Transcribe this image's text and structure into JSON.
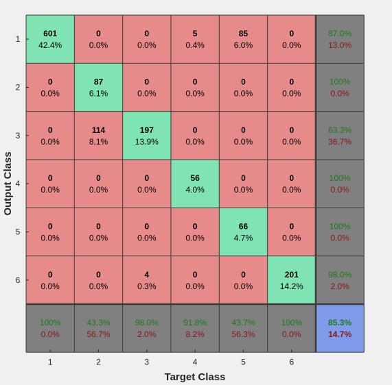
{
  "chart_data": {
    "type": "heatmap",
    "title": "",
    "xlabel": "Target Class",
    "ylabel": "Output Class",
    "x_ticks": [
      "1",
      "2",
      "3",
      "4",
      "5",
      "6"
    ],
    "y_ticks": [
      "1",
      "2",
      "3",
      "4",
      "5",
      "6"
    ],
    "rows": [
      {
        "cells": [
          {
            "count": "601",
            "pct": "42.4%"
          },
          {
            "count": "0",
            "pct": "0.0%"
          },
          {
            "count": "0",
            "pct": "0.0%"
          },
          {
            "count": "5",
            "pct": "0.4%"
          },
          {
            "count": "85",
            "pct": "6.0%"
          },
          {
            "count": "0",
            "pct": "0.0%"
          }
        ],
        "summary": {
          "good": "87.0%",
          "bad": "13.0%"
        }
      },
      {
        "cells": [
          {
            "count": "0",
            "pct": "0.0%"
          },
          {
            "count": "87",
            "pct": "6.1%"
          },
          {
            "count": "0",
            "pct": "0.0%"
          },
          {
            "count": "0",
            "pct": "0.0%"
          },
          {
            "count": "0",
            "pct": "0.0%"
          },
          {
            "count": "0",
            "pct": "0.0%"
          }
        ],
        "summary": {
          "good": "100%",
          "bad": "0.0%"
        }
      },
      {
        "cells": [
          {
            "count": "0",
            "pct": "0.0%"
          },
          {
            "count": "114",
            "pct": "8.1%"
          },
          {
            "count": "197",
            "pct": "13.9%"
          },
          {
            "count": "0",
            "pct": "0.0%"
          },
          {
            "count": "0",
            "pct": "0.0%"
          },
          {
            "count": "0",
            "pct": "0.0%"
          }
        ],
        "summary": {
          "good": "63.3%",
          "bad": "36.7%"
        }
      },
      {
        "cells": [
          {
            "count": "0",
            "pct": "0.0%"
          },
          {
            "count": "0",
            "pct": "0.0%"
          },
          {
            "count": "0",
            "pct": "0.0%"
          },
          {
            "count": "56",
            "pct": "4.0%"
          },
          {
            "count": "0",
            "pct": "0.0%"
          },
          {
            "count": "0",
            "pct": "0.0%"
          }
        ],
        "summary": {
          "good": "100%",
          "bad": "0.0%"
        }
      },
      {
        "cells": [
          {
            "count": "0",
            "pct": "0.0%"
          },
          {
            "count": "0",
            "pct": "0.0%"
          },
          {
            "count": "0",
            "pct": "0.0%"
          },
          {
            "count": "0",
            "pct": "0.0%"
          },
          {
            "count": "66",
            "pct": "4.7%"
          },
          {
            "count": "0",
            "pct": "0.0%"
          }
        ],
        "summary": {
          "good": "100%",
          "bad": "0.0%"
        }
      },
      {
        "cells": [
          {
            "count": "0",
            "pct": "0.0%"
          },
          {
            "count": "0",
            "pct": "0.0%"
          },
          {
            "count": "4",
            "pct": "0.3%"
          },
          {
            "count": "0",
            "pct": "0.0%"
          },
          {
            "count": "0",
            "pct": "0.0%"
          },
          {
            "count": "201",
            "pct": "14.2%"
          }
        ],
        "summary": {
          "good": "98.0%",
          "bad": "2.0%"
        }
      }
    ],
    "column_summary": [
      {
        "good": "100%",
        "bad": "0.0%"
      },
      {
        "good": "43.3%",
        "bad": "56.7%"
      },
      {
        "good": "98.0%",
        "bad": "2.0%"
      },
      {
        "good": "91.8%",
        "bad": "8.2%"
      },
      {
        "good": "43.7%",
        "bad": "56.3%"
      },
      {
        "good": "100%",
        "bad": "0.0%"
      }
    ],
    "overall": {
      "good": "85.3%",
      "bad": "14.7%"
    },
    "colors": {
      "correct": "#7fe3b4",
      "incorrect": "#e68a8a",
      "summary": "#808080",
      "overall": "#7f9bea",
      "good_text": "#1a7a1a",
      "bad_text": "#8b1414",
      "grid": "#3a3a3a",
      "background": "#f0f0f0"
    }
  }
}
